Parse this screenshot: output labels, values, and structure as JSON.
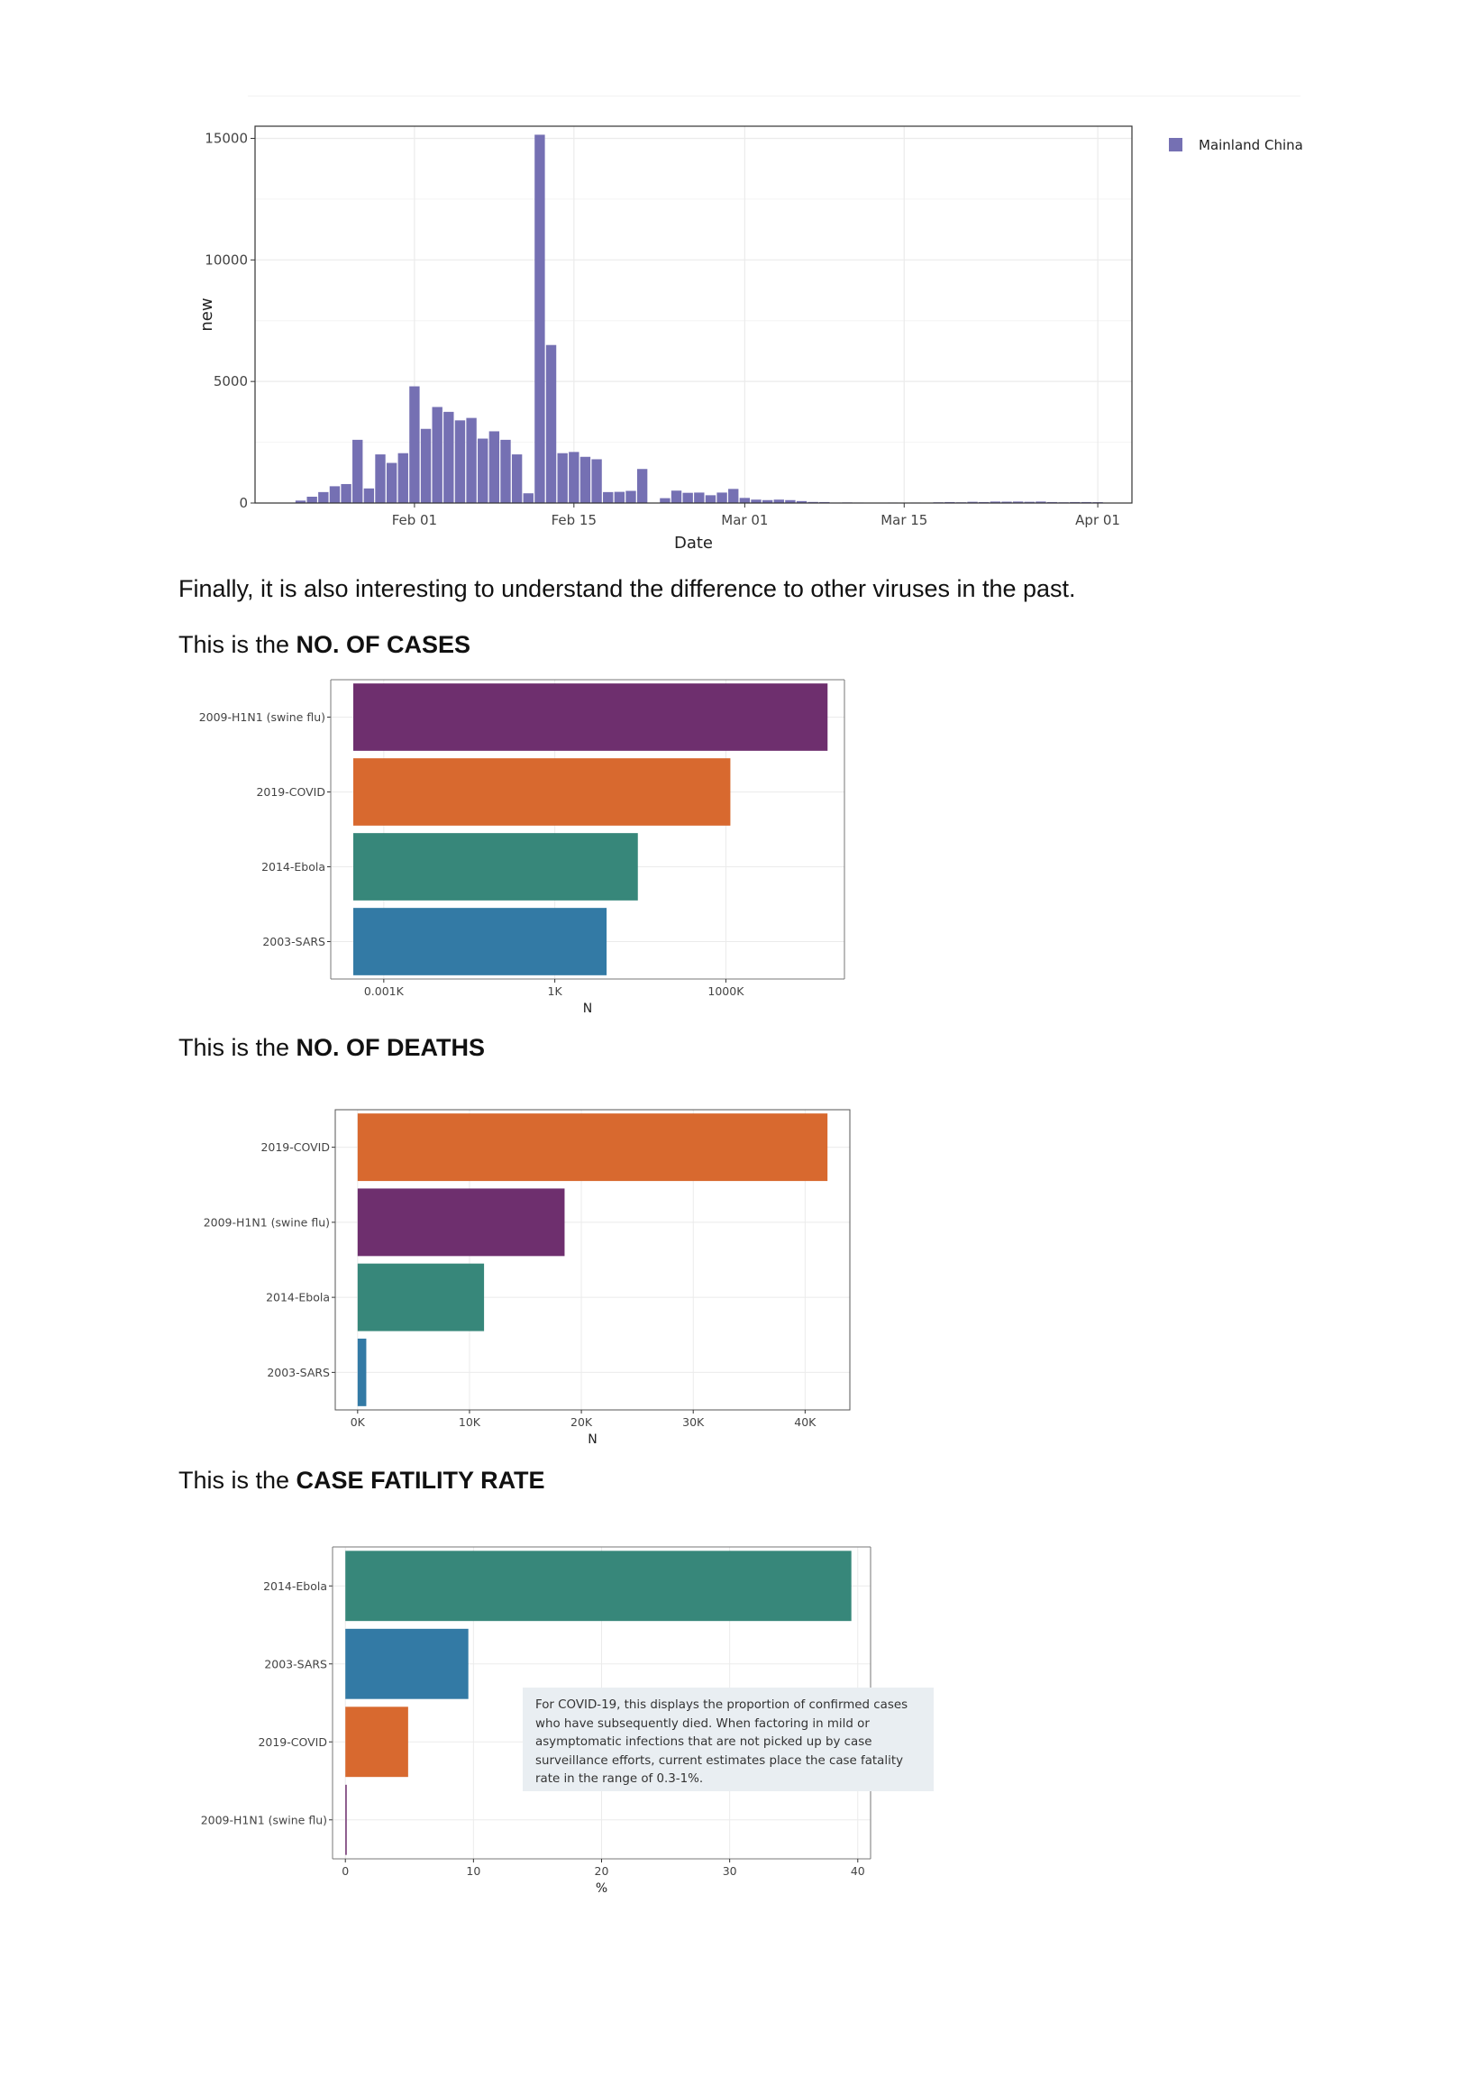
{
  "paragraphs": {
    "intro": "Finally, it is also interesting to understand the difference to other viruses in the past.",
    "cases_prefix": "This is the ",
    "cases_bold": "NO. OF CASES",
    "deaths_prefix": "This is the ",
    "deaths_bold": "NO. OF DEATHS",
    "cfr_prefix": "This is the ",
    "cfr_bold": "CASE FATILITY RATE"
  },
  "cfr_note": "For COVID-19, this displays the proportion of confirmed cases who have subsequently died. When factoring in mild or asymptomatic infections that are not picked up by case surveillance efforts, current estimates place the case fatality rate in the range of 0.3-1%.",
  "colors": {
    "china": "#7570b3",
    "h1n1": "#6e2f6e",
    "covid": "#d8692f",
    "ebola": "#37877a",
    "sars": "#337aa5",
    "grid": "#ebebeb",
    "panel_border": "#333333"
  },
  "chart_data": [
    {
      "type": "bar",
      "xlabel": "Date",
      "ylabel": "new",
      "ylim": [
        0,
        15500
      ],
      "yticks": [
        0,
        5000,
        10000,
        15000
      ],
      "xticks": [
        {
          "date": "2020-02-01",
          "label": "Feb 01"
        },
        {
          "date": "2020-02-15",
          "label": "Feb 15"
        },
        {
          "date": "2020-03-01",
          "label": "Mar 01"
        },
        {
          "date": "2020-03-15",
          "label": "Mar 15"
        },
        {
          "date": "2020-04-01",
          "label": "Apr 01"
        }
      ],
      "xlim": [
        "2020-01-18",
        "2020-04-04"
      ],
      "legend": {
        "position": "right",
        "entries": [
          "Mainland China"
        ]
      },
      "series": [
        {
          "name": "Mainland China",
          "x": [
            "2020-01-22",
            "2020-01-23",
            "2020-01-24",
            "2020-01-25",
            "2020-01-26",
            "2020-01-27",
            "2020-01-28",
            "2020-01-29",
            "2020-01-30",
            "2020-01-31",
            "2020-02-01",
            "2020-02-02",
            "2020-02-03",
            "2020-02-04",
            "2020-02-05",
            "2020-02-06",
            "2020-02-07",
            "2020-02-08",
            "2020-02-09",
            "2020-02-10",
            "2020-02-11",
            "2020-02-12",
            "2020-02-13",
            "2020-02-14",
            "2020-02-15",
            "2020-02-16",
            "2020-02-17",
            "2020-02-18",
            "2020-02-19",
            "2020-02-20",
            "2020-02-21",
            "2020-02-22",
            "2020-02-23",
            "2020-02-24",
            "2020-02-25",
            "2020-02-26",
            "2020-02-27",
            "2020-02-28",
            "2020-02-29",
            "2020-03-01",
            "2020-03-02",
            "2020-03-03",
            "2020-03-04",
            "2020-03-05",
            "2020-03-06",
            "2020-03-07",
            "2020-03-08",
            "2020-03-09",
            "2020-03-10",
            "2020-03-11",
            "2020-03-12",
            "2020-03-13",
            "2020-03-14",
            "2020-03-15",
            "2020-03-16",
            "2020-03-17",
            "2020-03-18",
            "2020-03-19",
            "2020-03-20",
            "2020-03-21",
            "2020-03-22",
            "2020-03-23",
            "2020-03-24",
            "2020-03-25",
            "2020-03-26",
            "2020-03-27",
            "2020-03-28",
            "2020-03-29",
            "2020-03-30",
            "2020-03-31",
            "2020-04-01"
          ],
          "values": [
            100,
            260,
            450,
            690,
            780,
            2600,
            600,
            2000,
            1650,
            2050,
            4800,
            3050,
            3950,
            3750,
            3400,
            3500,
            2650,
            2950,
            2600,
            2000,
            400,
            15150,
            6500,
            2050,
            2100,
            1900,
            1800,
            450,
            460,
            500,
            1400,
            0,
            200,
            510,
            420,
            430,
            320,
            430,
            580,
            210,
            140,
            120,
            140,
            120,
            80,
            44,
            40,
            20,
            25,
            20,
            15,
            10,
            20,
            10,
            20,
            15,
            30,
            40,
            30,
            50,
            40,
            60,
            55,
            60,
            50,
            60,
            40,
            30,
            40,
            40,
            35
          ]
        }
      ]
    },
    {
      "type": "bar",
      "orientation": "horizontal",
      "xlabel": "N",
      "scale": "log",
      "xticks": [
        {
          "value": 1,
          "label": "0.001K"
        },
        {
          "value": 1000,
          "label": "1K"
        },
        {
          "value": 1000000,
          "label": "1000K"
        }
      ],
      "categories": [
        "2009-H1N1 (swine flu)",
        "2019-COVID",
        "2014-Ebola",
        "2003-SARS"
      ],
      "values": [
        60800000,
        1200000,
        28600,
        8096
      ]
    },
    {
      "type": "bar",
      "orientation": "horizontal",
      "xlabel": "N",
      "xlim": [
        -2000,
        44000
      ],
      "xticks": [
        {
          "value": 0,
          "label": "0K"
        },
        {
          "value": 10000,
          "label": "10K"
        },
        {
          "value": 20000,
          "label": "20K"
        },
        {
          "value": 30000,
          "label": "30K"
        },
        {
          "value": 40000,
          "label": "40K"
        }
      ],
      "categories": [
        "2019-COVID",
        "2009-H1N1 (swine flu)",
        "2014-Ebola",
        "2003-SARS"
      ],
      "values": [
        42000,
        18500,
        11300,
        774
      ]
    },
    {
      "type": "bar",
      "orientation": "horizontal",
      "xlabel": "%",
      "xlim": [
        -1,
        41
      ],
      "xticks": [
        {
          "value": 0,
          "label": "0"
        },
        {
          "value": 10,
          "label": "10"
        },
        {
          "value": 20,
          "label": "20"
        },
        {
          "value": 30,
          "label": "30"
        },
        {
          "value": 40,
          "label": "40"
        }
      ],
      "categories": [
        "2014-Ebola",
        "2003-SARS",
        "2019-COVID",
        "2009-H1N1 (swine flu)"
      ],
      "values": [
        39.5,
        9.6,
        4.9,
        0.02
      ]
    }
  ]
}
